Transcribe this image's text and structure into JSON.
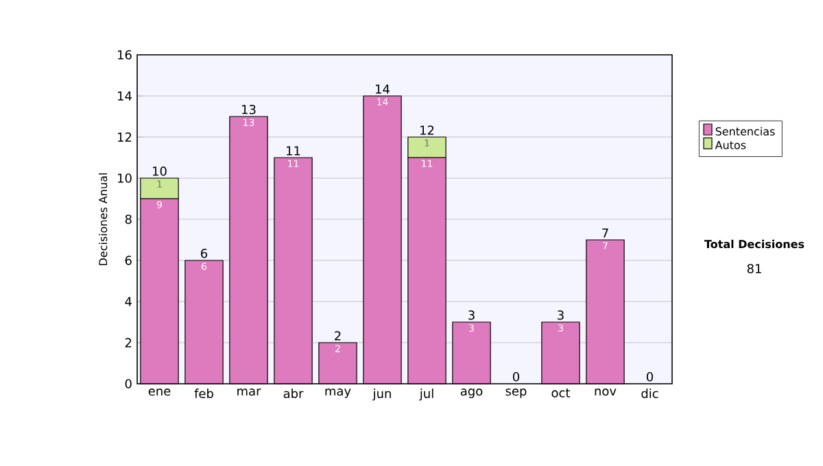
{
  "chart_data": {
    "type": "bar",
    "stacked": true,
    "ylabel": "Decisiones Anual",
    "categories": [
      "ene",
      "feb",
      "mar",
      "abr",
      "may",
      "jun",
      "jul",
      "ago",
      "sep",
      "oct",
      "nov",
      "dic"
    ],
    "series": [
      {
        "name": "Sentencias",
        "color": "#dd7bbe",
        "values": [
          9,
          6,
          13,
          11,
          2,
          14,
          11,
          3,
          0,
          3,
          7,
          0
        ],
        "value_labels": [
          "9",
          "6",
          "13",
          "11",
          "2",
          "14",
          "11",
          "3",
          null,
          "3",
          "7",
          null
        ]
      },
      {
        "name": "Autos",
        "color": "#cce896",
        "values": [
          1,
          0,
          0,
          0,
          0,
          0,
          1,
          0,
          0,
          0,
          0,
          0
        ],
        "value_labels": [
          "1",
          null,
          null,
          null,
          null,
          null,
          "1",
          null,
          null,
          null,
          null,
          null
        ]
      }
    ],
    "totals": [
      "10",
      "6",
      "13",
      "11",
      "2",
      "14",
      "12",
      "3",
      "0",
      "3",
      "7",
      "0"
    ],
    "ylim": [
      0,
      16
    ],
    "yticks": [
      0,
      2,
      4,
      6,
      8,
      10,
      12,
      14,
      16
    ],
    "grid": "y",
    "legend": "right",
    "annotations": [
      "Total Decisiones",
      "81"
    ]
  }
}
